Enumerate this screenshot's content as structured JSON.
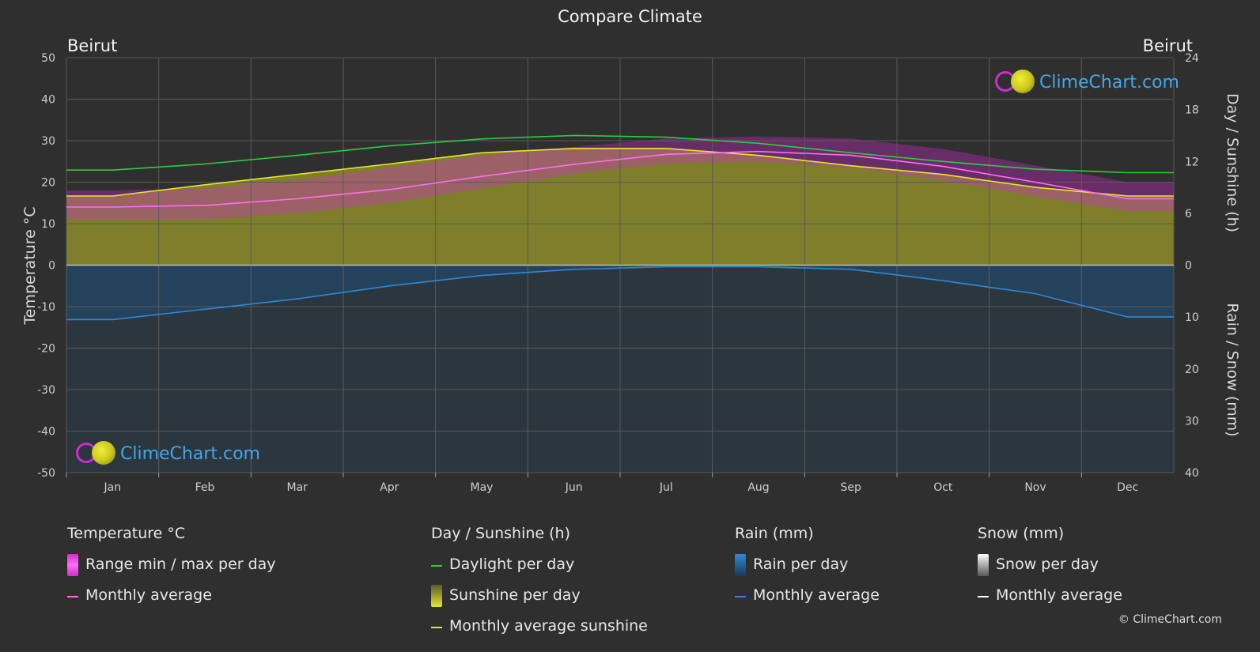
{
  "header": {
    "title": "Compare Climate",
    "city_left": "Beirut",
    "city_right": "Beirut"
  },
  "brand": {
    "name": "ClimeChart.com",
    "copyright": "© ClimeChart.com"
  },
  "chart_data": {
    "type": "area",
    "x_categories": [
      "Jan",
      "Feb",
      "Mar",
      "Apr",
      "May",
      "Jun",
      "Jul",
      "Aug",
      "Sep",
      "Oct",
      "Nov",
      "Dec"
    ],
    "axes": {
      "left": {
        "label": "Temperature °C",
        "range": [
          -50,
          50
        ],
        "ticks": [
          50,
          40,
          30,
          20,
          10,
          0,
          -10,
          -20,
          -30,
          -40,
          -50
        ]
      },
      "right_top": {
        "label": "Day / Sunshine (h)",
        "range": [
          0,
          24
        ],
        "ticks": [
          24,
          18,
          12,
          6,
          0
        ]
      },
      "right_bottom": {
        "label": "Rain / Snow (mm)",
        "range": [
          0,
          40
        ],
        "ticks": [
          10,
          20,
          30,
          40
        ]
      }
    },
    "series": {
      "daylight_h": [
        11.0,
        11.7,
        12.7,
        13.8,
        14.6,
        15.0,
        14.8,
        14.1,
        13.0,
        12.0,
        11.1,
        10.7
      ],
      "sunshine_avg_h": [
        8.0,
        9.3,
        10.5,
        11.7,
        13.0,
        13.5,
        13.5,
        12.7,
        11.5,
        10.5,
        9.0,
        8.0
      ],
      "temp_avg_c": [
        14.0,
        14.4,
        16.0,
        18.2,
        21.4,
        24.3,
        26.7,
        27.4,
        26.5,
        23.8,
        20.0,
        16.0
      ],
      "temp_max_c": [
        18.0,
        18.5,
        20.5,
        23.5,
        26.5,
        28.5,
        30.5,
        31.0,
        30.5,
        28.0,
        24.0,
        20.0
      ],
      "temp_min_c": [
        11.0,
        11.0,
        12.5,
        15.0,
        18.5,
        22.0,
        24.5,
        25.0,
        23.5,
        20.5,
        16.5,
        13.0
      ],
      "rain_avg_mm": [
        10.5,
        8.5,
        6.5,
        4.0,
        2.0,
        0.8,
        0.3,
        0.3,
        0.8,
        3.0,
        5.5,
        10.0
      ]
    },
    "grid": true
  },
  "legend": {
    "temperature": {
      "title": "Temperature °C",
      "items": [
        "Range min / max per day",
        "Monthly average"
      ]
    },
    "sunshine": {
      "title": "Day / Sunshine (h)",
      "items": [
        "Daylight per day",
        "Sunshine per day",
        "Monthly average sunshine"
      ]
    },
    "rain": {
      "title": "Rain (mm)",
      "items": [
        "Rain per day",
        "Monthly average"
      ]
    },
    "snow": {
      "title": "Snow (mm)",
      "items": [
        "Snow per day",
        "Monthly average"
      ]
    }
  },
  "colors": {
    "background": "#2f2f2f",
    "grid": "#5a5a5a",
    "daylight": "#2ecc40",
    "sunshine": "#e6e62e",
    "sunshine_fill": "#8c8c2a",
    "temp_avg": "#ff6ef0",
    "temp_range": "#d42ad4",
    "rain": "#2c8ad8",
    "rain_fill": "#1f4f7a",
    "snow": "#ffffff"
  }
}
